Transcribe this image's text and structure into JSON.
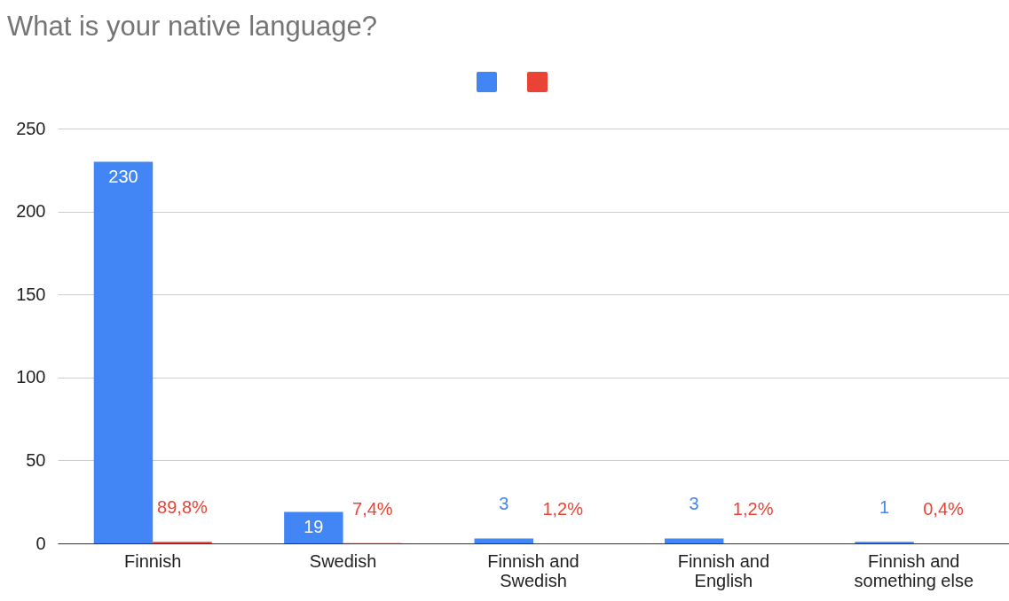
{
  "chart_data": {
    "type": "bar",
    "title": "What is your native language?",
    "categories": [
      "Finnish",
      "Swedish",
      "Finnish and Swedish",
      "Finnish and English",
      "Finnish and something else"
    ],
    "series": [
      {
        "color": "#4285f4",
        "values": [
          230,
          19,
          3,
          3,
          1
        ],
        "value_labels": [
          "230",
          "19",
          "3",
          "3",
          "1"
        ]
      },
      {
        "color": "#ea4335",
        "values": [
          0.898,
          0.074,
          0.012,
          0.012,
          0.004
        ],
        "value_labels": [
          "89,8%",
          "7,4%",
          "1,2%",
          "1,2%",
          "0,4%"
        ]
      }
    ],
    "ylim": [
      0,
      250
    ],
    "yticks": [
      0,
      50,
      100,
      150,
      200,
      250
    ],
    "grid": "y"
  }
}
